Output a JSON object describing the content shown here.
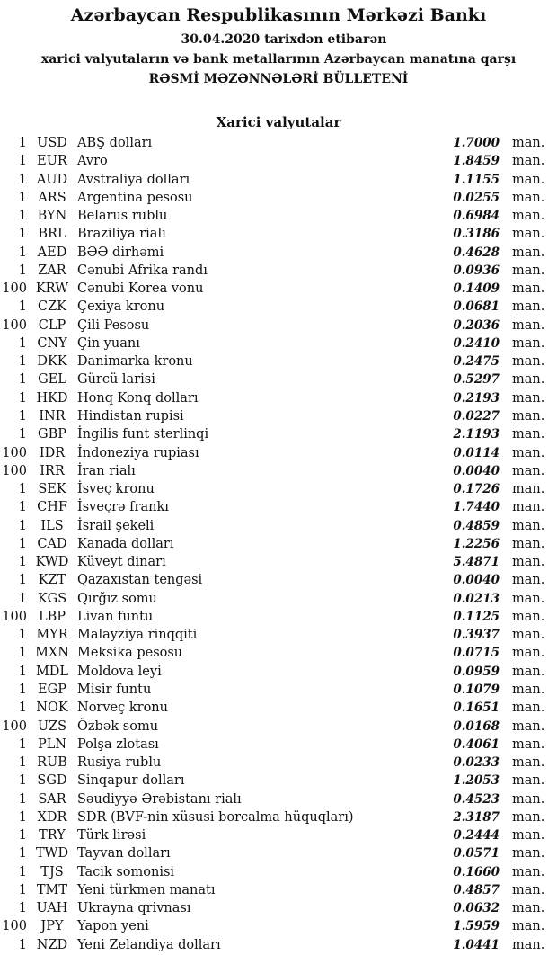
{
  "header": {
    "bank": "Azərbaycan Respublikasının Mərkəzi Bankı",
    "date_line": "30.04.2020  tarixdən etibarən",
    "subtitle": "xarici valyutaların və bank metallarının Azərbaycan manatına qarşı",
    "title": "RƏSMİ MƏZƏNNƏLƏRİ BÜLLETENİ"
  },
  "section": {
    "title": "Xarici valyutalar",
    "rows": [
      {
        "amount": "1",
        "code": "USD",
        "name": "ABŞ dolları",
        "rate": "1.7000",
        "unit": "man."
      },
      {
        "amount": "1",
        "code": "EUR",
        "name": "Avro",
        "rate": "1.8459",
        "unit": "man."
      },
      {
        "amount": "1",
        "code": "AUD",
        "name": "Avstraliya dolları",
        "rate": "1.1155",
        "unit": "man."
      },
      {
        "amount": "1",
        "code": "ARS",
        "name": "Argentina pesosu",
        "rate": "0.0255",
        "unit": "man."
      },
      {
        "amount": "1",
        "code": "BYN",
        "name": "Belarus rublu",
        "rate": "0.6984",
        "unit": "man."
      },
      {
        "amount": "1",
        "code": "BRL",
        "name": "Braziliya rialı",
        "rate": "0.3186",
        "unit": "man."
      },
      {
        "amount": "1",
        "code": "AED",
        "name": "BƏƏ dirhəmi",
        "rate": "0.4628",
        "unit": "man."
      },
      {
        "amount": "1",
        "code": "ZAR",
        "name": "Cənubi Afrika randı",
        "rate": "0.0936",
        "unit": "man."
      },
      {
        "amount": "100",
        "code": "KRW",
        "name": "Cənubi Korea vonu",
        "rate": "0.1409",
        "unit": "man."
      },
      {
        "amount": "1",
        "code": "CZK",
        "name": "Çexiya kronu",
        "rate": "0.0681",
        "unit": "man."
      },
      {
        "amount": "100",
        "code": "CLP",
        "name": "Çili Pesosu",
        "rate": "0.2036",
        "unit": "man."
      },
      {
        "amount": "1",
        "code": "CNY",
        "name": "Çin yuanı",
        "rate": "0.2410",
        "unit": "man."
      },
      {
        "amount": "1",
        "code": "DKK",
        "name": "Danimarka kronu",
        "rate": "0.2475",
        "unit": "man."
      },
      {
        "amount": "1",
        "code": "GEL",
        "name": "Gürcü larisi",
        "rate": "0.5297",
        "unit": "man."
      },
      {
        "amount": "1",
        "code": "HKD",
        "name": "Honq Konq dolları",
        "rate": "0.2193",
        "unit": "man."
      },
      {
        "amount": "1",
        "code": "INR",
        "name": "Hindistan rupisi",
        "rate": "0.0227",
        "unit": "man."
      },
      {
        "amount": "1",
        "code": "GBP",
        "name": "İngilis funt sterlinqi",
        "rate": "2.1193",
        "unit": "man."
      },
      {
        "amount": "100",
        "code": "IDR",
        "name": "İndoneziya rupiası",
        "rate": "0.0114",
        "unit": "man."
      },
      {
        "amount": "100",
        "code": "IRR",
        "name": "İran rialı",
        "rate": "0.0040",
        "unit": "man."
      },
      {
        "amount": "1",
        "code": "SEK",
        "name": "İsveç kronu",
        "rate": "0.1726",
        "unit": "man."
      },
      {
        "amount": "1",
        "code": "CHF",
        "name": "İsveçrə frankı",
        "rate": "1.7440",
        "unit": "man."
      },
      {
        "amount": "1",
        "code": "ILS",
        "name": "İsrail şekeli",
        "rate": "0.4859",
        "unit": "man."
      },
      {
        "amount": "1",
        "code": "CAD",
        "name": "Kanada dolları",
        "rate": "1.2256",
        "unit": "man."
      },
      {
        "amount": "1",
        "code": "KWD",
        "name": "Küveyt dinarı",
        "rate": "5.4871",
        "unit": "man."
      },
      {
        "amount": "1",
        "code": "KZT",
        "name": "Qazaxıstan tengəsi",
        "rate": "0.0040",
        "unit": "man."
      },
      {
        "amount": "1",
        "code": "KGS",
        "name": "Qırğız somu",
        "rate": "0.0213",
        "unit": "man."
      },
      {
        "amount": "100",
        "code": "LBP",
        "name": "Livan funtu",
        "rate": "0.1125",
        "unit": "man."
      },
      {
        "amount": "1",
        "code": "MYR",
        "name": "Malayziya rinqqiti",
        "rate": "0.3937",
        "unit": "man."
      },
      {
        "amount": "1",
        "code": "MXN",
        "name": "Meksika pesosu",
        "rate": "0.0715",
        "unit": "man."
      },
      {
        "amount": "1",
        "code": "MDL",
        "name": "Moldova leyi",
        "rate": "0.0959",
        "unit": "man."
      },
      {
        "amount": "1",
        "code": "EGP",
        "name": "Misir funtu",
        "rate": "0.1079",
        "unit": "man."
      },
      {
        "amount": "1",
        "code": "NOK",
        "name": "Norveç kronu",
        "rate": "0.1651",
        "unit": "man."
      },
      {
        "amount": "100",
        "code": "UZS",
        "name": "Özbək somu",
        "rate": "0.0168",
        "unit": "man."
      },
      {
        "amount": "1",
        "code": "PLN",
        "name": "Polşa zlotası",
        "rate": "0.4061",
        "unit": "man."
      },
      {
        "amount": "1",
        "code": "RUB",
        "name": "Rusiya rublu",
        "rate": "0.0233",
        "unit": "man."
      },
      {
        "amount": "1",
        "code": "SGD",
        "name": "Sinqapur dolları",
        "rate": "1.2053",
        "unit": "man."
      },
      {
        "amount": "1",
        "code": "SAR",
        "name": "Səudiyyə Ərəbistanı rialı",
        "rate": "0.4523",
        "unit": "man."
      },
      {
        "amount": "1",
        "code": "XDR",
        "name": "SDR (BVF-nin xüsusi borcalma hüquqları)",
        "rate": "2.3187",
        "unit": "man."
      },
      {
        "amount": "1",
        "code": "TRY",
        "name": "Türk lirəsi",
        "rate": "0.2444",
        "unit": "man."
      },
      {
        "amount": "1",
        "code": "TWD",
        "name": "Tayvan dolları",
        "rate": "0.0571",
        "unit": "man."
      },
      {
        "amount": "1",
        "code": "TJS",
        "name": "Tacik somonisi",
        "rate": "0.1660",
        "unit": "man."
      },
      {
        "amount": "1",
        "code": "TMT",
        "name": "Yeni türkmən manatı",
        "rate": "0.4857",
        "unit": "man."
      },
      {
        "amount": "1",
        "code": "UAH",
        "name": "Ukrayna qrivnası",
        "rate": "0.0632",
        "unit": "man."
      },
      {
        "amount": "100",
        "code": "JPY",
        "name": "Yapon yeni",
        "rate": "1.5959",
        "unit": "man."
      },
      {
        "amount": "1",
        "code": "NZD",
        "name": "Yeni Zelandiya dolları",
        "rate": "1.0441",
        "unit": "man."
      }
    ]
  }
}
